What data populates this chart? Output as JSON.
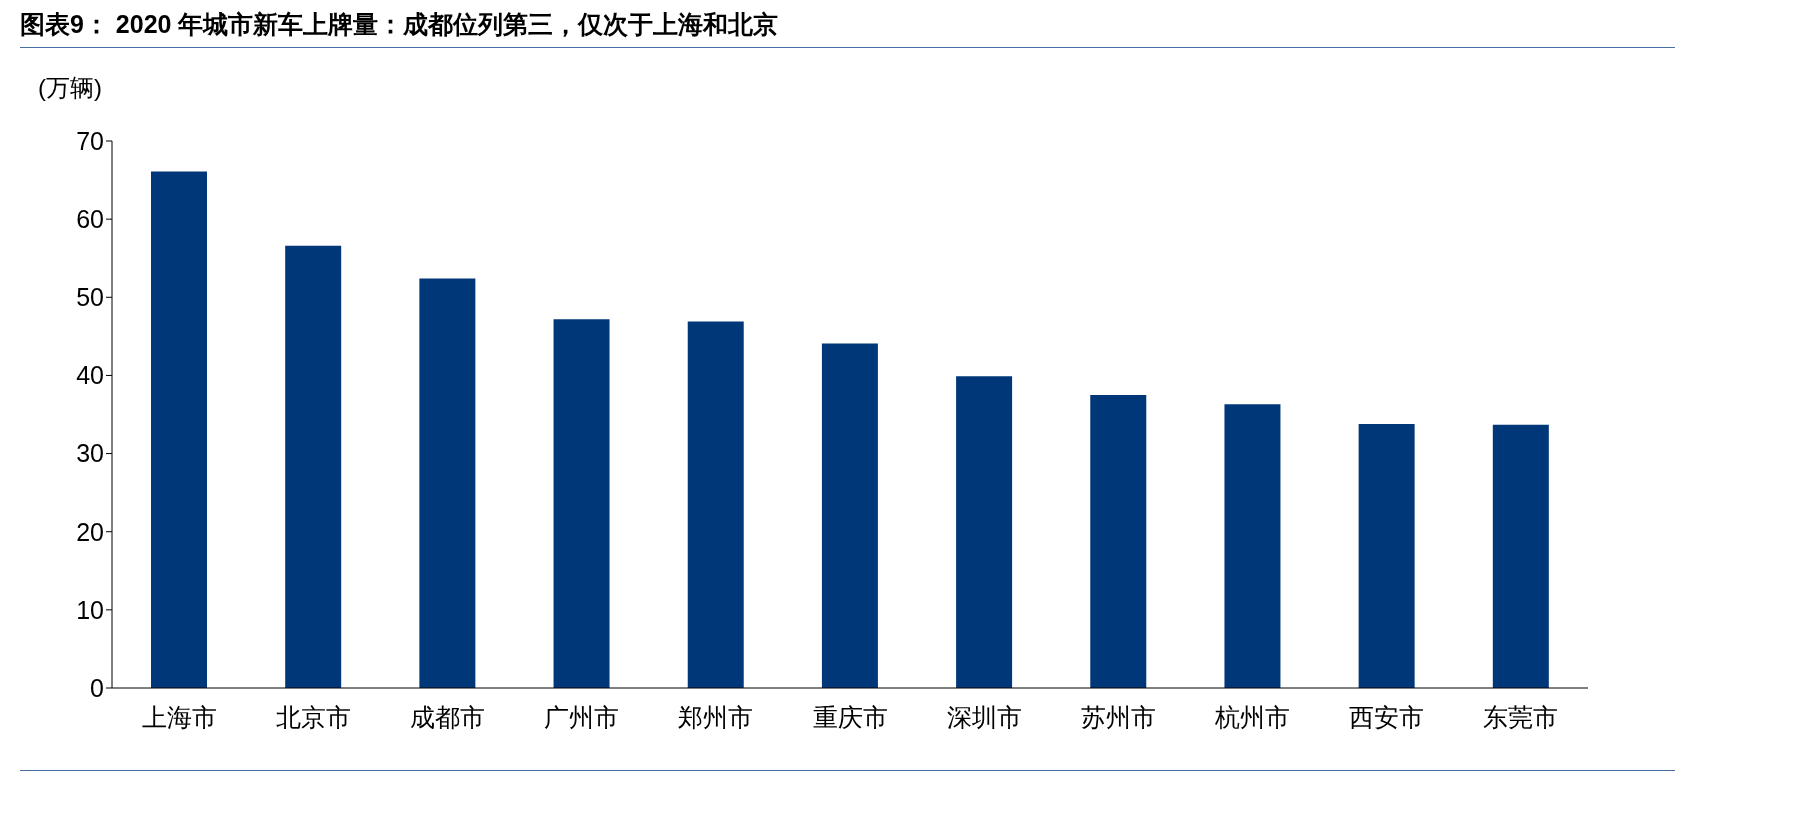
{
  "chart_data": {
    "type": "bar",
    "title": "图表9：  2020 年城市新车上牌量：成都位列第三，仅次于上海和北京",
    "ylabel": "(万辆)",
    "categories": [
      "上海市",
      "北京市",
      "成都市",
      "广州市",
      "郑州市",
      "重庆市",
      "深圳市",
      "苏州市",
      "杭州市",
      "西安市",
      "东莞市"
    ],
    "values": [
      66.1,
      56.6,
      52.4,
      47.2,
      46.9,
      44.1,
      39.9,
      37.5,
      36.3,
      33.8,
      33.7
    ],
    "color": "#003778",
    "ylim": [
      0,
      70
    ],
    "yticks": [
      0,
      10,
      20,
      30,
      40,
      50,
      60,
      70
    ],
    "grid": false,
    "legend": false
  }
}
